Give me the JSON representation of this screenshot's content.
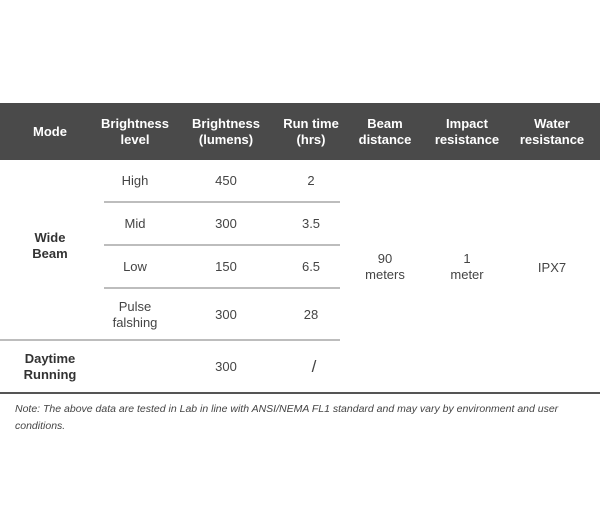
{
  "headers": [
    "Mode",
    "Brightness level",
    "Brightness (lumens)",
    "Run time (hrs)",
    "Beam distance",
    "Impact resistance",
    "Water resistance"
  ],
  "header_lines": [
    [
      "Mode"
    ],
    [
      "Brightness",
      "level"
    ],
    [
      "Brightness",
      "(lumens)"
    ],
    [
      "Run time",
      "(hrs)"
    ],
    [
      "Beam",
      "distance"
    ],
    [
      "Impact",
      "resistance"
    ],
    [
      "Water",
      "resistance"
    ]
  ],
  "modes": [
    {
      "name_lines": [
        "Wide",
        "Beam"
      ],
      "levels": [
        {
          "level": "High",
          "lumens": "450",
          "runtime": "2"
        },
        {
          "level": "Mid",
          "lumens": "300",
          "runtime": "3.5"
        },
        {
          "level": "Low",
          "lumens": "150",
          "runtime": "6.5"
        },
        {
          "level_lines": [
            "Pulse",
            "falshing"
          ],
          "lumens": "300",
          "runtime": "28"
        }
      ]
    },
    {
      "name_lines": [
        "Daytime",
        "Running"
      ],
      "levels": [
        {
          "level": "",
          "lumens": "300",
          "runtime": "/"
        }
      ]
    }
  ],
  "shared": {
    "beam_lines": [
      "90",
      "meters"
    ],
    "impact_lines": [
      "1",
      "meter"
    ],
    "water": "IPX7"
  },
  "note": "Note: The above data are tested in Lab in line with ANSI/NEMA FL1 standard and may vary by environment and user conditions.",
  "colors": {
    "header_bg": "#4a4a4a",
    "header_text": "#ffffff"
  }
}
